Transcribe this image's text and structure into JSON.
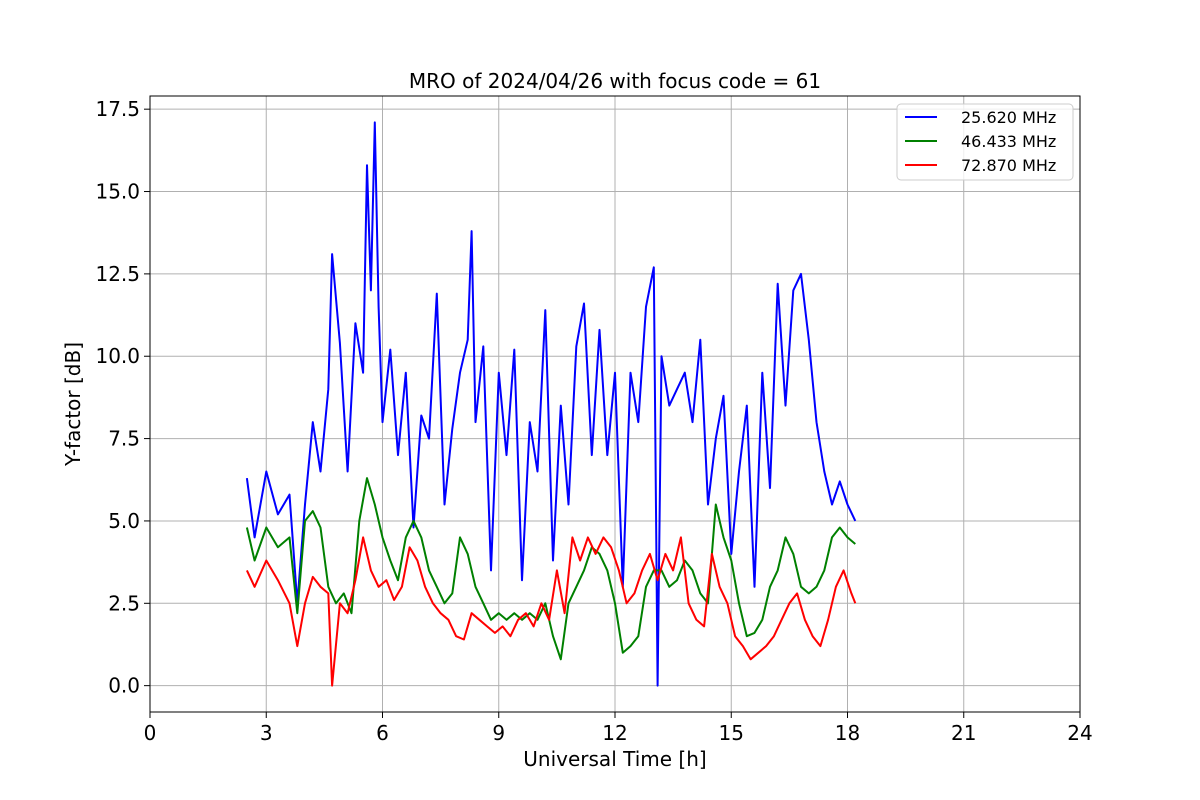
{
  "chart_data": {
    "type": "line",
    "title": "MRO of 2024/04/26 with focus code = 61",
    "xlabel": "Universal Time [h]",
    "ylabel": "Y-factor [dB]",
    "xlim": [
      0,
      24
    ],
    "ylim": [
      -0.8,
      17.9
    ],
    "xticks": [
      0,
      3,
      6,
      9,
      12,
      15,
      18,
      21,
      24
    ],
    "yticks": [
      0.0,
      2.5,
      5.0,
      7.5,
      10.0,
      12.5,
      15.0,
      17.5
    ],
    "xtick_labels": [
      "0",
      "3",
      "6",
      "9",
      "12",
      "15",
      "18",
      "21",
      "24"
    ],
    "ytick_labels": [
      "0.0",
      "2.5",
      "5.0",
      "7.5",
      "10.0",
      "12.5",
      "15.0",
      "17.5"
    ],
    "grid": true,
    "legend_position": "top-right",
    "series": [
      {
        "name": "25.620 MHz",
        "color": "#0000ff",
        "x": [
          2.5,
          2.7,
          3.0,
          3.3,
          3.6,
          3.8,
          4.0,
          4.2,
          4.4,
          4.6,
          4.7,
          4.9,
          5.1,
          5.3,
          5.5,
          5.6,
          5.7,
          5.8,
          5.9,
          6.0,
          6.2,
          6.4,
          6.6,
          6.8,
          7.0,
          7.2,
          7.4,
          7.6,
          7.8,
          8.0,
          8.2,
          8.3,
          8.4,
          8.6,
          8.8,
          9.0,
          9.2,
          9.4,
          9.6,
          9.8,
          10.0,
          10.2,
          10.4,
          10.6,
          10.8,
          11.0,
          11.2,
          11.4,
          11.6,
          11.8,
          12.0,
          12.2,
          12.4,
          12.6,
          12.8,
          13.0,
          13.1,
          13.2,
          13.4,
          13.6,
          13.8,
          14.0,
          14.2,
          14.4,
          14.6,
          14.8,
          15.0,
          15.2,
          15.4,
          15.6,
          15.8,
          16.0,
          16.2,
          16.4,
          16.6,
          16.8,
          17.0,
          17.2,
          17.4,
          17.6,
          17.8,
          18.0,
          18.2
        ],
        "y": [
          6.3,
          4.5,
          6.5,
          5.2,
          5.8,
          2.5,
          5.5,
          8.0,
          6.5,
          9.0,
          13.1,
          10.4,
          6.5,
          11.0,
          9.5,
          15.8,
          12.0,
          17.1,
          11.5,
          8.0,
          10.2,
          7.0,
          9.5,
          4.8,
          8.2,
          7.5,
          11.9,
          5.5,
          7.8,
          9.5,
          10.5,
          13.8,
          8.0,
          10.3,
          3.5,
          9.5,
          7.0,
          10.2,
          3.2,
          8.0,
          6.5,
          11.4,
          3.8,
          8.5,
          5.5,
          10.3,
          11.6,
          7.0,
          10.8,
          7.0,
          9.5,
          3.0,
          9.5,
          8.0,
          11.5,
          12.7,
          0.0,
          10.0,
          8.5,
          9.0,
          9.5,
          8.0,
          10.5,
          5.5,
          7.5,
          8.8,
          4.0,
          6.5,
          8.5,
          3.0,
          9.5,
          6.0,
          12.2,
          8.5,
          12.0,
          12.5,
          10.5,
          8.0,
          6.5,
          5.5,
          6.2,
          5.5,
          5.0
        ]
      },
      {
        "name": "46.433 MHz",
        "color": "#008000",
        "x": [
          2.5,
          2.7,
          3.0,
          3.3,
          3.6,
          3.8,
          4.0,
          4.2,
          4.4,
          4.6,
          4.8,
          5.0,
          5.2,
          5.4,
          5.6,
          5.8,
          6.0,
          6.2,
          6.4,
          6.6,
          6.8,
          7.0,
          7.2,
          7.4,
          7.6,
          7.8,
          8.0,
          8.2,
          8.4,
          8.6,
          8.8,
          9.0,
          9.2,
          9.4,
          9.6,
          9.8,
          10.0,
          10.2,
          10.4,
          10.6,
          10.8,
          11.0,
          11.2,
          11.4,
          11.6,
          11.8,
          12.0,
          12.2,
          12.4,
          12.6,
          12.8,
          13.0,
          13.2,
          13.4,
          13.6,
          13.8,
          14.0,
          14.2,
          14.4,
          14.6,
          14.8,
          15.0,
          15.2,
          15.4,
          15.6,
          15.8,
          16.0,
          16.2,
          16.4,
          16.6,
          16.8,
          17.0,
          17.2,
          17.4,
          17.6,
          17.8,
          18.0,
          18.2
        ],
        "y": [
          4.8,
          3.8,
          4.8,
          4.2,
          4.5,
          2.2,
          5.0,
          5.3,
          4.8,
          3.0,
          2.5,
          2.8,
          2.2,
          5.0,
          6.3,
          5.5,
          4.5,
          3.8,
          3.2,
          4.5,
          5.0,
          4.5,
          3.5,
          3.0,
          2.5,
          2.8,
          4.5,
          4.0,
          3.0,
          2.5,
          2.0,
          2.2,
          2.0,
          2.2,
          2.0,
          2.2,
          2.0,
          2.5,
          1.5,
          0.8,
          2.5,
          3.0,
          3.5,
          4.2,
          4.0,
          3.5,
          2.5,
          1.0,
          1.2,
          1.5,
          3.0,
          3.5,
          3.5,
          3.0,
          3.2,
          3.8,
          3.5,
          2.8,
          2.5,
          5.5,
          4.5,
          3.8,
          2.5,
          1.5,
          1.6,
          2.0,
          3.0,
          3.5,
          4.5,
          4.0,
          3.0,
          2.8,
          3.0,
          3.5,
          4.5,
          4.8,
          4.5,
          4.3
        ]
      },
      {
        "name": "72.870 MHz",
        "color": "#ff0000",
        "x": [
          2.5,
          2.7,
          3.0,
          3.3,
          3.6,
          3.8,
          4.0,
          4.2,
          4.4,
          4.6,
          4.7,
          4.9,
          5.1,
          5.3,
          5.5,
          5.7,
          5.9,
          6.1,
          6.3,
          6.5,
          6.7,
          6.9,
          7.1,
          7.3,
          7.5,
          7.7,
          7.9,
          8.1,
          8.3,
          8.5,
          8.7,
          8.9,
          9.1,
          9.3,
          9.5,
          9.7,
          9.9,
          10.1,
          10.3,
          10.5,
          10.7,
          10.9,
          11.1,
          11.3,
          11.5,
          11.7,
          11.9,
          12.1,
          12.3,
          12.5,
          12.7,
          12.9,
          13.1,
          13.3,
          13.5,
          13.7,
          13.9,
          14.1,
          14.3,
          14.5,
          14.7,
          14.9,
          15.1,
          15.3,
          15.5,
          15.7,
          15.9,
          16.1,
          16.3,
          16.5,
          16.7,
          16.9,
          17.1,
          17.3,
          17.5,
          17.7,
          17.9,
          18.1,
          18.2
        ],
        "y": [
          3.5,
          3.0,
          3.8,
          3.2,
          2.5,
          1.2,
          2.5,
          3.3,
          3.0,
          2.8,
          0.0,
          2.5,
          2.2,
          3.2,
          4.5,
          3.5,
          3.0,
          3.2,
          2.6,
          3.0,
          4.2,
          3.8,
          3.0,
          2.5,
          2.2,
          2.0,
          1.5,
          1.4,
          2.2,
          2.0,
          1.8,
          1.6,
          1.8,
          1.5,
          2.0,
          2.2,
          1.8,
          2.5,
          2.0,
          3.5,
          2.2,
          4.5,
          3.8,
          4.5,
          4.0,
          4.5,
          4.2,
          3.5,
          2.5,
          2.8,
          3.5,
          4.0,
          3.2,
          4.0,
          3.5,
          4.5,
          2.5,
          2.0,
          1.8,
          4.0,
          3.0,
          2.5,
          1.5,
          1.2,
          0.8,
          1.0,
          1.2,
          1.5,
          2.0,
          2.5,
          2.8,
          2.0,
          1.5,
          1.2,
          2.0,
          3.0,
          3.5,
          2.8,
          2.5
        ]
      }
    ]
  }
}
